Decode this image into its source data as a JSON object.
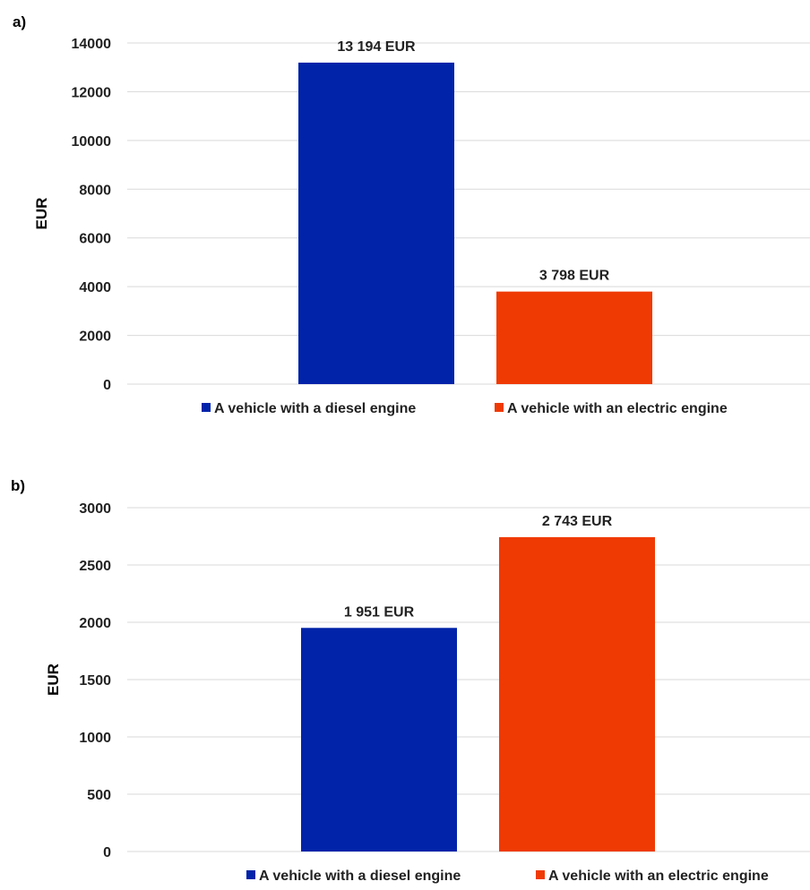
{
  "chart_data": [
    {
      "panel_label": "a)",
      "type": "bar",
      "ylabel": "EUR",
      "ylim": [
        0,
        14000
      ],
      "yticks": [
        0,
        2000,
        4000,
        6000,
        8000,
        10000,
        12000,
        14000
      ],
      "grid": true,
      "legend_position": "bottom",
      "series": [
        {
          "name": "A vehicle with a diesel engine",
          "color": "#0023A9",
          "value": 13194,
          "data_label": "13 194 EUR"
        },
        {
          "name": "A vehicle with an electric engine",
          "color": "#F03A03",
          "value": 3798,
          "data_label": "3 798 EUR"
        }
      ]
    },
    {
      "panel_label": "b)",
      "type": "bar",
      "ylabel": "EUR",
      "ylim": [
        0,
        3000
      ],
      "yticks": [
        0,
        500,
        1000,
        1500,
        2000,
        2500,
        3000
      ],
      "grid": true,
      "legend_position": "bottom",
      "series": [
        {
          "name": "A vehicle with a diesel engine",
          "color": "#0023A9",
          "value": 1951,
          "data_label": "1 951 EUR"
        },
        {
          "name": "A vehicle with an electric engine",
          "color": "#F03A03",
          "value": 2743,
          "data_label": "2 743 EUR"
        }
      ]
    }
  ]
}
